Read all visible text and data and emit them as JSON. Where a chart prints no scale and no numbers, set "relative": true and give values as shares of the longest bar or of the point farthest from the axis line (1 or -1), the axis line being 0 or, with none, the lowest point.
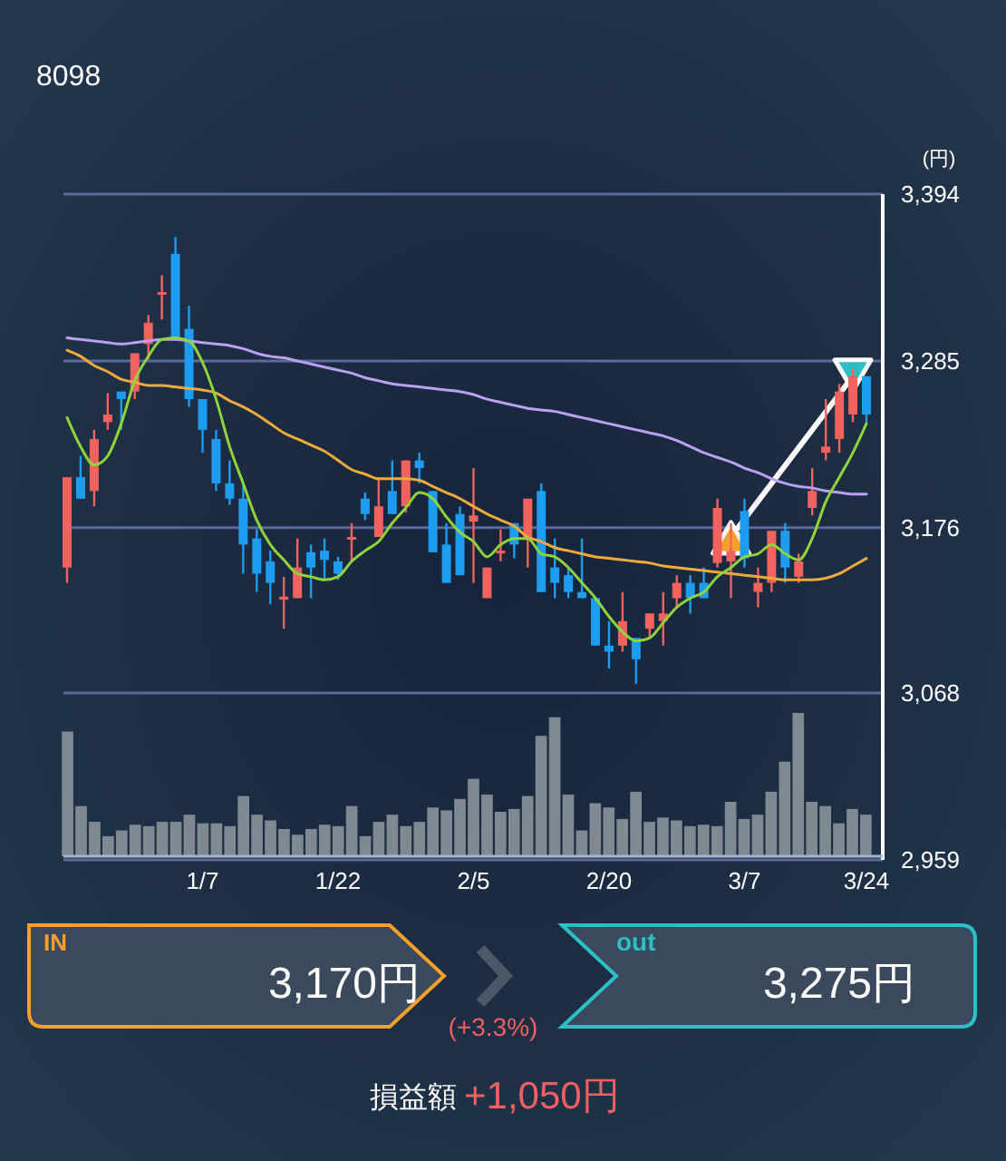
{
  "chart_data": [
    {
      "type": "candlestick",
      "title": "8098",
      "ylabel": "(円)",
      "categories": [
        null,
        null,
        null,
        null,
        null,
        null,
        null,
        null,
        null,
        null,
        "1/7",
        null,
        null,
        null,
        null,
        null,
        null,
        null,
        null,
        null,
        "1/22",
        null,
        null,
        null,
        null,
        null,
        null,
        null,
        null,
        null,
        "2/5",
        null,
        null,
        null,
        null,
        null,
        null,
        null,
        null,
        null,
        "2/20",
        null,
        null,
        null,
        null,
        null,
        null,
        null,
        null,
        null,
        "3/7",
        null,
        null,
        null,
        null,
        null,
        null,
        null,
        null,
        "3/24"
      ],
      "ylim": [
        2959,
        3394
      ],
      "yticks": [
        {
          "value": 2959,
          "label": "2,959"
        },
        {
          "value": 3068,
          "label": "3,068"
        },
        {
          "value": 3176,
          "label": "3,176"
        },
        {
          "value": 3285,
          "label": "3,285"
        },
        {
          "value": 3394,
          "label": "3,394"
        }
      ],
      "grid": "y",
      "ohlc": [
        [
          3150,
          3209,
          3140,
          3209
        ],
        [
          3209,
          3223,
          3195,
          3195
        ],
        [
          3200,
          3240,
          3190,
          3234
        ],
        [
          3245,
          3264,
          3240,
          3250
        ],
        [
          3265,
          3265,
          3240,
          3260
        ],
        [
          3265,
          3290,
          3260,
          3290
        ],
        [
          3296,
          3315,
          3286,
          3310
        ],
        [
          3329,
          3341,
          3312,
          3330
        ],
        [
          3355,
          3366,
          3300,
          3300
        ],
        [
          3306,
          3321,
          3255,
          3260
        ],
        [
          3260,
          3260,
          3225,
          3240
        ],
        [
          3234,
          3240,
          3200,
          3205
        ],
        [
          3205,
          3220,
          3191,
          3195
        ],
        [
          3195,
          3205,
          3146,
          3165
        ],
        [
          3169,
          3175,
          3134,
          3146
        ],
        [
          3154,
          3161,
          3126,
          3140
        ],
        [
          3129,
          3144,
          3110,
          3131
        ],
        [
          3130,
          3169,
          3130,
          3150
        ],
        [
          3160,
          3165,
          3130,
          3150
        ],
        [
          3161,
          3169,
          3142,
          3155
        ],
        [
          3154,
          3157,
          3142,
          3146
        ],
        [
          3169,
          3179,
          3154,
          3170
        ],
        [
          3195,
          3199,
          3181,
          3185
        ],
        [
          3170,
          3209,
          3170,
          3190
        ],
        [
          3200,
          3220,
          3185,
          3185
        ],
        [
          3190,
          3220,
          3186,
          3220
        ],
        [
          3220,
          3225,
          3205,
          3215
        ],
        [
          3200,
          3200,
          3160,
          3160
        ],
        [
          3165,
          3179,
          3140,
          3140
        ],
        [
          3185,
          3190,
          3145,
          3145
        ],
        [
          3180,
          3215,
          3140,
          3184
        ],
        [
          3130,
          3150,
          3130,
          3150
        ],
        [
          3160,
          3175,
          3154,
          3161
        ],
        [
          3179,
          3179,
          3156,
          3165
        ],
        [
          3169,
          3195,
          3150,
          3195
        ],
        [
          3200,
          3205,
          3134,
          3134
        ],
        [
          3150,
          3169,
          3130,
          3140
        ],
        [
          3145,
          3150,
          3130,
          3134
        ],
        [
          3134,
          3169,
          3130,
          3130
        ],
        [
          3130,
          3130,
          3099,
          3099
        ],
        [
          3099,
          3115,
          3084,
          3095
        ],
        [
          3099,
          3134,
          3095,
          3115
        ],
        [
          3104,
          3104,
          3074,
          3090
        ],
        [
          3110,
          3120,
          3104,
          3120
        ],
        [
          3115,
          3134,
          3099,
          3120
        ],
        [
          3130,
          3145,
          3124,
          3140
        ],
        [
          3140,
          3145,
          3120,
          3130
        ],
        [
          3140,
          3150,
          3130,
          3130
        ],
        [
          3153,
          3195,
          3150,
          3189
        ],
        [
          3154,
          3179,
          3130,
          3161
        ],
        [
          3187,
          3195,
          3150,
          3156
        ],
        [
          3134,
          3150,
          3124,
          3140
        ],
        [
          3140,
          3174,
          3134,
          3174
        ],
        [
          3174,
          3179,
          3140,
          3150
        ],
        [
          3144,
          3159,
          3140,
          3154
        ],
        [
          3189,
          3215,
          3184,
          3200
        ],
        [
          3225,
          3260,
          3220,
          3229
        ],
        [
          3234,
          3270,
          3225,
          3265
        ],
        [
          3250,
          3280,
          3245,
          3275
        ],
        [
          3275,
          3275,
          3244,
          3250
        ]
      ],
      "colors": [
        "#f2625f",
        "#1e9cf0",
        "#f2625f",
        "#f2625f",
        "#1e9cf0",
        "#f2625f",
        "#f2625f",
        "#f2625f",
        "#1e9cf0",
        "#1e9cf0",
        "#1e9cf0",
        "#1e9cf0",
        "#1e9cf0",
        "#1e9cf0",
        "#1e9cf0",
        "#1e9cf0",
        "#f2625f",
        "#f2625f",
        "#1e9cf0",
        "#1e9cf0",
        "#1e9cf0",
        "#f2625f",
        "#1e9cf0",
        "#f2625f",
        "#1e9cf0",
        "#f2625f",
        "#1e9cf0",
        "#1e9cf0",
        "#1e9cf0",
        "#1e9cf0",
        "#f2625f",
        "#f2625f",
        "#f2625f",
        "#1e9cf0",
        "#f2625f",
        "#1e9cf0",
        "#1e9cf0",
        "#1e9cf0",
        "#1e9cf0",
        "#1e9cf0",
        "#1e9cf0",
        "#f2625f",
        "#1e9cf0",
        "#f2625f",
        "#f2625f",
        "#f2625f",
        "#1e9cf0",
        "#1e9cf0",
        "#f2625f",
        "#f2625f",
        "#1e9cf0",
        "#f2625f",
        "#f2625f",
        "#1e9cf0",
        "#f2625f",
        "#f2625f",
        "#f2625f",
        "#f2625f",
        "#f2625f",
        "#1e9cf0"
      ],
      "series": [
        {
          "type": "line",
          "color": "#b9a0f2",
          "values": [
            3300,
            3299,
            3298,
            3297,
            3296,
            3297,
            3298,
            3299,
            3299,
            3298,
            3297,
            3296,
            3295,
            3293,
            3290,
            3288,
            3287,
            3285,
            3283,
            3281,
            3279,
            3277,
            3274,
            3272,
            3270,
            3269,
            3268,
            3267,
            3266,
            3265,
            3263,
            3260,
            3258,
            3256,
            3254,
            3253,
            3252,
            3250,
            3248,
            3246,
            3244,
            3242,
            3240,
            3238,
            3236,
            3233,
            3229,
            3225,
            3222,
            3219,
            3215,
            3212,
            3208,
            3205,
            3203,
            3202,
            3200,
            3199,
            3198,
            3198
          ]
        },
        {
          "type": "line",
          "color": "#f0aa3c",
          "values": [
            3292,
            3288,
            3282,
            3278,
            3273,
            3271,
            3269,
            3269,
            3268,
            3267,
            3266,
            3264,
            3259,
            3255,
            3250,
            3244,
            3238,
            3234,
            3230,
            3226,
            3220,
            3214,
            3211,
            3208,
            3208,
            3208,
            3207,
            3203,
            3199,
            3195,
            3190,
            3185,
            3181,
            3177,
            3170,
            3167,
            3163,
            3161,
            3159,
            3157,
            3156,
            3155,
            3154,
            3153,
            3151,
            3150,
            3149,
            3148,
            3147,
            3146,
            3145,
            3144,
            3143,
            3142,
            3142,
            3142,
            3143,
            3146,
            3151,
            3156
          ]
        },
        {
          "type": "line",
          "color": "#8fd43a",
          "values": [
            3248,
            3229,
            3217,
            3223,
            3244,
            3272,
            3288,
            3299,
            3300,
            3298,
            3284,
            3260,
            3229,
            3205,
            3181,
            3165,
            3155,
            3146,
            3144,
            3142,
            3144,
            3154,
            3161,
            3167,
            3179,
            3189,
            3199,
            3195,
            3183,
            3173,
            3167,
            3157,
            3165,
            3169,
            3169,
            3159,
            3157,
            3150,
            3140,
            3130,
            3118,
            3108,
            3102,
            3104,
            3114,
            3124,
            3130,
            3134,
            3144,
            3150,
            3157,
            3159,
            3165,
            3159,
            3155,
            3169,
            3193,
            3209,
            3225,
            3244
          ]
        },
        {
          "type": "line",
          "color": "#ffffff",
          "values": [
            null,
            null,
            null,
            null,
            null,
            null,
            null,
            null,
            null,
            null,
            null,
            null,
            null,
            null,
            null,
            null,
            null,
            null,
            null,
            null,
            null,
            null,
            null,
            null,
            null,
            null,
            null,
            null,
            null,
            null,
            null,
            null,
            null,
            null,
            null,
            null,
            null,
            null,
            null,
            null,
            null,
            null,
            null,
            null,
            null,
            null,
            null,
            null,
            null,
            3170,
            null,
            null,
            null,
            null,
            null,
            null,
            null,
            null,
            3275,
            null
          ]
        },
        {
          "type": "scatter",
          "marker": "triangle",
          "color": "#f5a02a",
          "values": [
            null,
            null,
            null,
            null,
            null,
            null,
            null,
            null,
            null,
            null,
            null,
            null,
            null,
            null,
            null,
            null,
            null,
            null,
            null,
            null,
            null,
            null,
            null,
            null,
            null,
            null,
            null,
            null,
            null,
            null,
            null,
            null,
            null,
            null,
            null,
            null,
            null,
            null,
            null,
            null,
            null,
            null,
            null,
            null,
            null,
            null,
            null,
            null,
            null,
            3170,
            null,
            null,
            null,
            null,
            null,
            null,
            null,
            null,
            null,
            null
          ]
        },
        {
          "type": "scatter",
          "marker": "triangle",
          "color": "#2cc0c6",
          "values": [
            null,
            null,
            null,
            null,
            null,
            null,
            null,
            null,
            null,
            null,
            null,
            null,
            null,
            null,
            null,
            null,
            null,
            null,
            null,
            null,
            null,
            null,
            null,
            null,
            null,
            null,
            null,
            null,
            null,
            null,
            null,
            null,
            null,
            null,
            null,
            null,
            null,
            null,
            null,
            null,
            null,
            null,
            null,
            null,
            null,
            null,
            null,
            null,
            null,
            null,
            null,
            null,
            null,
            null,
            null,
            null,
            null,
            null,
            3275,
            null
          ]
        }
      ]
    },
    {
      "type": "bar",
      "relative": true,
      "color": "#7f8992",
      "categories": [
        null,
        null,
        null,
        null,
        null,
        null,
        null,
        null,
        null,
        null,
        null,
        null,
        null,
        null,
        null,
        null,
        null,
        null,
        null,
        null,
        null,
        null,
        null,
        null,
        null,
        null,
        null,
        null,
        null,
        null,
        null,
        null,
        null,
        null,
        null,
        null,
        null,
        null,
        null,
        null,
        null,
        null,
        null,
        null,
        null,
        null,
        null,
        null,
        null,
        null,
        null,
        null,
        null,
        null,
        null,
        null,
        null,
        null,
        null,
        null
      ],
      "values": [
        0.87,
        0.35,
        0.24,
        0.14,
        0.18,
        0.22,
        0.21,
        0.24,
        0.24,
        0.29,
        0.23,
        0.23,
        0.21,
        0.42,
        0.29,
        0.25,
        0.19,
        0.15,
        0.19,
        0.22,
        0.21,
        0.35,
        0.14,
        0.24,
        0.29,
        0.21,
        0.24,
        0.34,
        0.32,
        0.4,
        0.54,
        0.43,
        0.31,
        0.33,
        0.42,
        0.84,
        0.97,
        0.43,
        0.18,
        0.37,
        0.34,
        0.26,
        0.45,
        0.24,
        0.27,
        0.25,
        0.21,
        0.22,
        0.21,
        0.38,
        0.26,
        0.29,
        0.45,
        0.66,
        1,
        0.38,
        0.35,
        0.23,
        0.33,
        0.29
      ]
    },
    {
      "type": "other",
      "annotations": [
        "IN",
        "3,170円",
        "(+3.3%)",
        "out",
        "3,275円",
        "損益額",
        "+1,050円"
      ]
    }
  ]
}
